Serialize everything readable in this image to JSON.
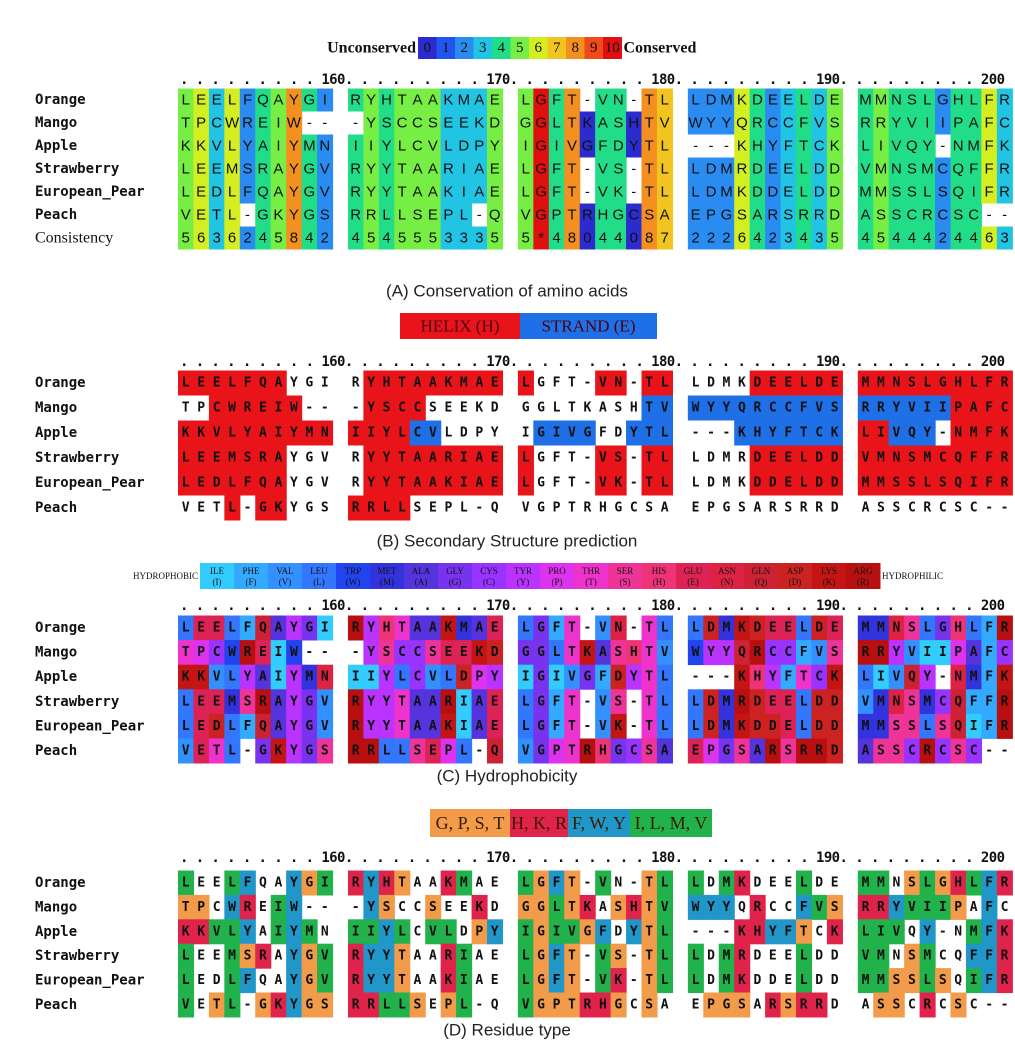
{
  "alignment": {
    "ruler": ". . . . . . . . . 160. . . . . . . . . 170. . . . . . . . . 180. . . . . . . . . 190. . . . . . . . . 200",
    "rows": [
      {
        "name": "Orange",
        "sequence": "LEELFQAYGI RYHTAAKMAE LGFT-VN-TL LDMKDEELDE MMNSLGHLFR"
      },
      {
        "name": "Mango",
        "sequence": "TPCWREIW-- -YSCCSEEKD GGLTKASHTV WYYQRCCFVS RRYVIIPAFC"
      },
      {
        "name": "Apple",
        "sequence": "KKVLYAIYMN IIYLCVLDPY IGIVGFDYTL ---KHYFTCK LIVQY-NMFK"
      },
      {
        "name": "Strawberry",
        "sequence": "LEEMSRAYGV RYYTAARIAE LGFT-VS-TL LDMRDEELDD VMNSMCQFFR"
      },
      {
        "name": "European_Pear",
        "sequence": "LEDLFQAYGV RYYTAAKIAE LGFT-VK-TL LDMKDDELDD MMSSLSQIFR"
      },
      {
        "name": "Peach",
        "sequence": "VETL-GKYGS RRLLSEPL-Q VGPTRHGCSA EPGSARSRRD ASSCRCSC--"
      }
    ]
  },
  "panels": [
    {
      "scheme": "conservation",
      "legend": {
        "left": "Unconserved",
        "right": "Conserved",
        "items": [
          {
            "label": "0",
            "color": "#2b2bd0"
          },
          {
            "label": "1",
            "color": "#2255ee"
          },
          {
            "label": "2",
            "color": "#2a8cf0"
          },
          {
            "label": "3",
            "color": "#22c4e4"
          },
          {
            "label": "4",
            "color": "#22dd88"
          },
          {
            "label": "5",
            "color": "#77ee44"
          },
          {
            "label": "6",
            "color": "#d4ee22"
          },
          {
            "label": "7",
            "color": "#f2c420"
          },
          {
            "label": "8",
            "color": "#f39020"
          },
          {
            "label": "9",
            "color": "#f04a1a"
          },
          {
            "label": "10",
            "color": "#e01010"
          }
        ]
      },
      "consistency": {
        "name": "Consistency",
        "values": "5636245842 4545553335 5*48044087 2226423435 4544424463"
      },
      "caption": "(A) Conservation of amino acids"
    },
    {
      "scheme": "structure",
      "legend": {
        "items": [
          {
            "label": "HELIX (H)",
            "color": "#e8141a"
          },
          {
            "label": "STRAND (E)",
            "color": "#1f6fe6"
          }
        ]
      },
      "structure": [
        "HHHHHHH--- -HHHHHHHHH H----HH-HH ----HHHHHH HHHHHHHHHH",
        "--HHHHHH-- -HHHH----- --------EE EEEEEEEEEE EEEEEEHHHH",
        "HHHHHHHHHH HHHHEE---- -EEEE--EEE ---EEEEEEE HHEEE-HHHH",
        "HHHHHHH--- -HHHHHHHHH H----HH-HH ----HHHHHH HHHHHHHHHH",
        "HHHHHHH--- -HHHHHHHHH H----HH-HH ----HHHHHH HHHHHHHHHH",
        "---H-HH--- HHHH------ ---------- ---------- ----------"
      ],
      "caption": "(B) Secondary Structure prediction"
    },
    {
      "scheme": "hydrophobicity",
      "legend": {
        "left": "HYDROPHOBIC",
        "right": "HYDROPHILIC",
        "items": [
          {
            "name": "ILE",
            "code": "(I)",
            "color": "#33ccff"
          },
          {
            "name": "PHE",
            "code": "(F)",
            "color": "#33aaff"
          },
          {
            "name": "VAL",
            "code": "(V)",
            "color": "#3390ff"
          },
          {
            "name": "LEU",
            "code": "(L)",
            "color": "#3377ff"
          },
          {
            "name": "TRP",
            "code": "(W)",
            "color": "#2244ee"
          },
          {
            "name": "MET",
            "code": "(M)",
            "color": "#3333dd"
          },
          {
            "name": "ALA",
            "code": "(A)",
            "color": "#5533dd"
          },
          {
            "name": "GLY",
            "code": "(G)",
            "color": "#7733ee"
          },
          {
            "name": "CYS",
            "code": "(C)",
            "color": "#9933ff"
          },
          {
            "name": "TYR",
            "code": "(Y)",
            "color": "#bb33ff"
          },
          {
            "name": "PRO",
            "code": "(P)",
            "color": "#dd33ee"
          },
          {
            "name": "THR",
            "code": "(T)",
            "color": "#ee33cc"
          },
          {
            "name": "SER",
            "code": "(S)",
            "color": "#ee3399"
          },
          {
            "name": "HIS",
            "code": "(H)",
            "color": "#ee3377"
          },
          {
            "name": "GLU",
            "code": "(E)",
            "color": "#dd2255"
          },
          {
            "name": "ASN",
            "code": "(N)",
            "color": "#dd2244"
          },
          {
            "name": "GLN",
            "code": "(Q)",
            "color": "#cc2233"
          },
          {
            "name": "ASP",
            "code": "(D)",
            "color": "#cc2222"
          },
          {
            "name": "LYS",
            "code": "(K)",
            "color": "#c41414"
          },
          {
            "name": "ARG",
            "code": "(R)",
            "color": "#b81010"
          }
        ]
      },
      "caption": "(C) Hydrophobicity"
    },
    {
      "scheme": "residue_type",
      "legend": {
        "items": [
          {
            "label": "G, P, S, T",
            "color": "#f29b4a"
          },
          {
            "label": "H, K, R",
            "color": "#e0234a"
          },
          {
            "label": "F, W, Y",
            "color": "#2196c8"
          },
          {
            "label": "I, L, M, V",
            "color": "#22b24c"
          }
        ]
      },
      "caption": "(D) Residue type"
    }
  ]
}
